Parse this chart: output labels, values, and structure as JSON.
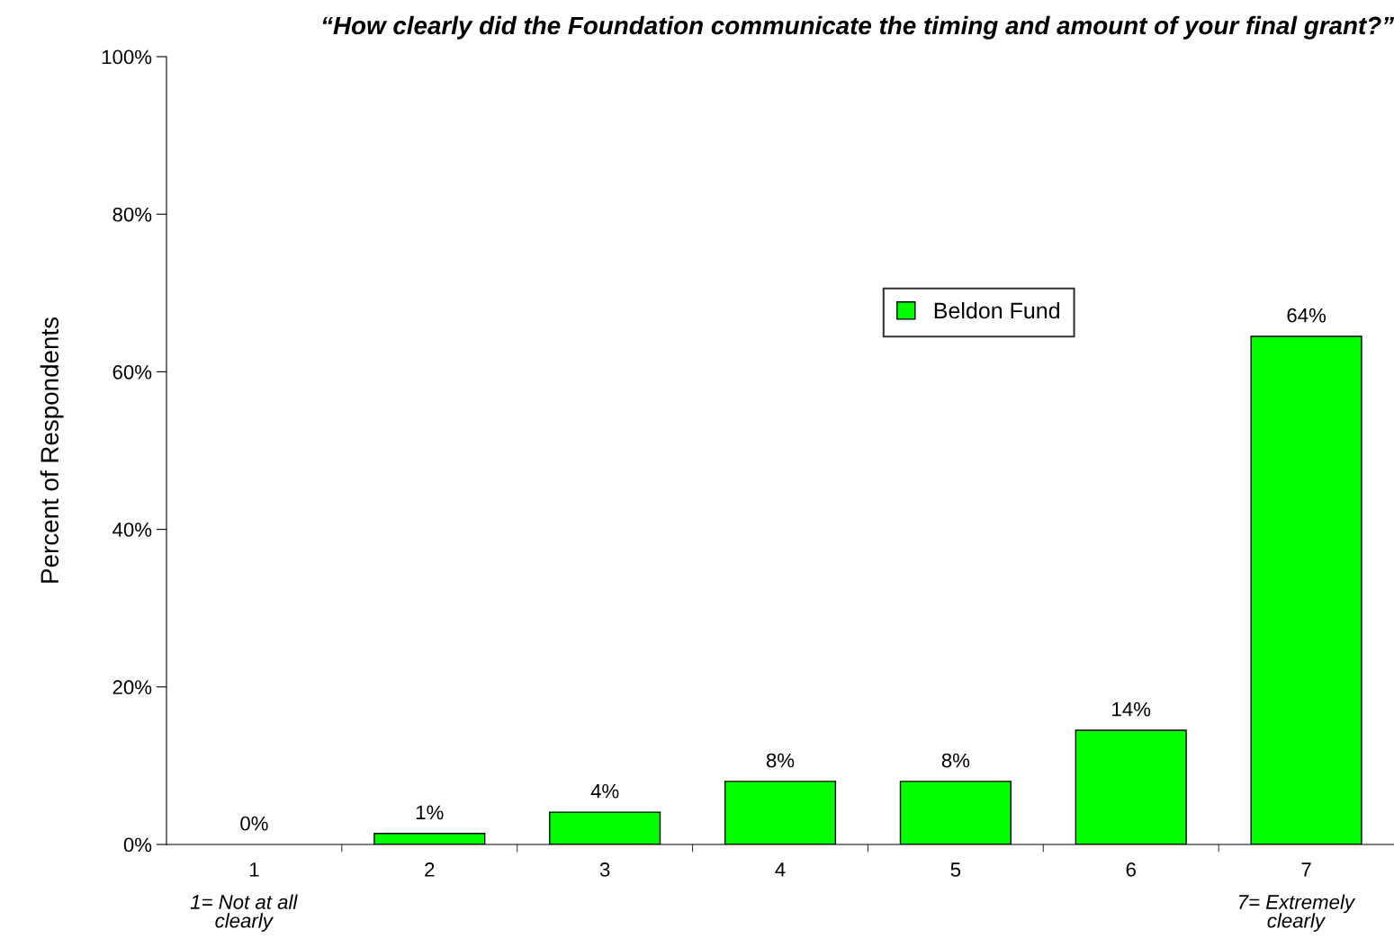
{
  "chart_data": {
    "type": "bar",
    "title": "“How clearly did the Foundation communicate the timing and amount of your final grant?”",
    "ylabel": "Percent of Respondents",
    "categories": [
      "1",
      "2",
      "3",
      "4",
      "5",
      "6",
      "7"
    ],
    "series": [
      {
        "name": "Beldon Fund",
        "color": "#00ff00",
        "values": [
          0,
          1.4,
          4.1,
          8.0,
          8.0,
          14.5,
          64.5
        ],
        "value_labels": [
          "0%",
          "1%",
          "4%",
          "8%",
          "8%",
          "14%",
          "64%"
        ]
      }
    ],
    "annotations": [
      "1= Not at all\nclearly",
      "7= Extremely\nclearly"
    ],
    "ylim": [
      0,
      100
    ],
    "yticks": [
      {
        "value": 0,
        "label": "0%"
      },
      {
        "value": 20,
        "label": "20%"
      },
      {
        "value": 40,
        "label": "40%"
      },
      {
        "value": 60,
        "label": "60%"
      },
      {
        "value": 80,
        "label": "80%"
      },
      {
        "value": 100,
        "label": "100%"
      }
    ],
    "grid": false,
    "legend": "top right"
  }
}
